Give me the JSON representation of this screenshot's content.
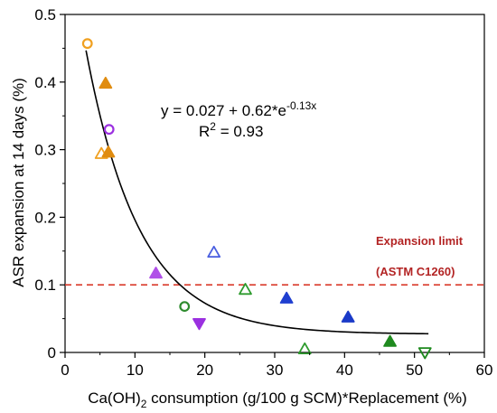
{
  "chart_data": {
    "type": "scatter",
    "xlabel_pre": "Ca(OH)",
    "xlabel_sub": "2",
    "xlabel_post": " consumption (g/100 g SCM)*Replacement (%)",
    "ylabel": "ASR expansion at 14 days (%)",
    "xlim": [
      0,
      60
    ],
    "ylim": [
      0,
      0.5
    ],
    "x_ticks": [
      "0",
      "10",
      "20",
      "30",
      "40",
      "50",
      "60"
    ],
    "y_ticks": [
      "0",
      "0.1",
      "0.2",
      "0.3",
      "0.4",
      "0.5"
    ],
    "grid": false,
    "fit": {
      "equation": "y = 0.027 + 0.62*e^-0.13x",
      "eq_main": "y = 0.027 + 0.62*e",
      "eq_exp": "-0.13x",
      "r2_pre": "R",
      "r2_sup": "2",
      "r2_post": " = 0.93",
      "a": 0.027,
      "b": 0.62,
      "k": 0.13,
      "x_range": [
        3,
        52
      ],
      "color": "#000000"
    },
    "limit_line": {
      "y": 0.1,
      "color": "#d93a2b",
      "label_1": "Expansion limit",
      "label_2": "(ASTM C1260)"
    },
    "points": [
      {
        "x": 3.2,
        "y": 0.457,
        "shape": "circle",
        "filled": false,
        "color": "#f0a020"
      },
      {
        "x": 5.8,
        "y": 0.398,
        "shape": "triangle-up",
        "filled": true,
        "color": "#e08c10"
      },
      {
        "x": 6.3,
        "y": 0.33,
        "shape": "circle",
        "filled": false,
        "color": "#9b30e0"
      },
      {
        "x": 5.2,
        "y": 0.294,
        "shape": "triangle-up",
        "filled": false,
        "color": "#f0a020"
      },
      {
        "x": 6.2,
        "y": 0.296,
        "shape": "triangle-up",
        "filled": true,
        "color": "#e08c10"
      },
      {
        "x": 13.0,
        "y": 0.117,
        "shape": "triangle-up",
        "filled": true,
        "color": "#b050e8"
      },
      {
        "x": 21.3,
        "y": 0.148,
        "shape": "triangle-up",
        "filled": false,
        "color": "#4a5fe0"
      },
      {
        "x": 17.1,
        "y": 0.068,
        "shape": "circle",
        "filled": false,
        "color": "#2e8b2e"
      },
      {
        "x": 19.2,
        "y": 0.043,
        "shape": "triangle-down",
        "filled": true,
        "color": "#9b30e0"
      },
      {
        "x": 25.8,
        "y": 0.093,
        "shape": "triangle-up",
        "filled": false,
        "color": "#2e9b2e"
      },
      {
        "x": 31.7,
        "y": 0.08,
        "shape": "triangle-up",
        "filled": true,
        "color": "#1f3fd0"
      },
      {
        "x": 34.3,
        "y": 0.005,
        "shape": "triangle-up",
        "filled": false,
        "color": "#2e9b2e"
      },
      {
        "x": 40.5,
        "y": 0.052,
        "shape": "triangle-up",
        "filled": true,
        "color": "#1a3ac8"
      },
      {
        "x": 46.5,
        "y": 0.016,
        "shape": "triangle-up",
        "filled": true,
        "color": "#1f8a1f"
      },
      {
        "x": 51.5,
        "y": 0.0,
        "shape": "triangle-down",
        "filled": false,
        "color": "#1f8a1f"
      }
    ]
  }
}
